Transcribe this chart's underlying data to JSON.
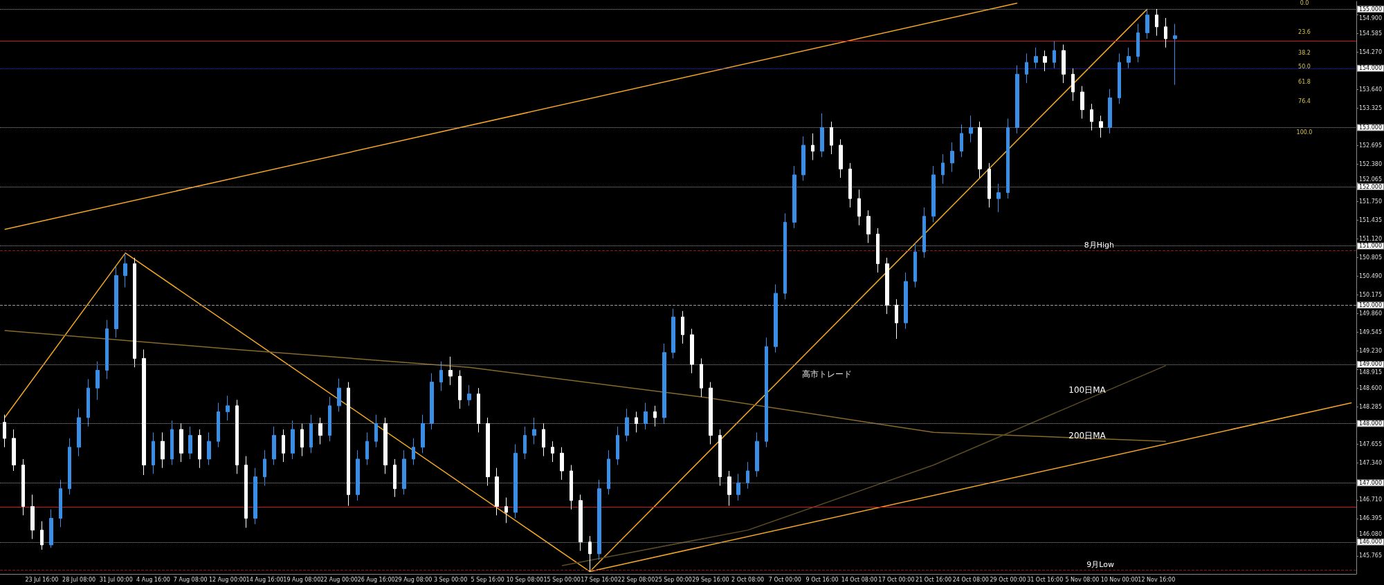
{
  "chart_data": {
    "type": "candlestick",
    "categories": [
      null,
      null,
      null,
      null,
      "23 Jul 16:00",
      null,
      null,
      null,
      "28 Jul 08:00",
      null,
      null,
      null,
      "31 Jul 00:00",
      null,
      null,
      null,
      "4 Aug 16:00",
      null,
      null,
      null,
      "7 Aug 08:00",
      null,
      null,
      null,
      "12 Aug 00:00",
      null,
      null,
      null,
      "14 Aug 16:00",
      null,
      null,
      null,
      "19 Aug 08:00",
      null,
      null,
      null,
      "22 Aug 00:00",
      null,
      null,
      null,
      "26 Aug 16:00",
      null,
      null,
      null,
      "29 Aug 08:00",
      null,
      null,
      null,
      "3 Sep 00:00",
      null,
      null,
      null,
      "5 Sep 16:00",
      null,
      null,
      null,
      "10 Sep 08:00",
      null,
      null,
      null,
      "15 Sep 00:00",
      null,
      null,
      null,
      "17 Sep 16:00",
      null,
      null,
      null,
      "22 Sep 08:00",
      null,
      null,
      null,
      "25 Sep 00:00",
      null,
      null,
      null,
      "29 Sep 16:00",
      null,
      null,
      null,
      "2 Oct 08:00",
      null,
      null,
      null,
      "7 Oct 00:00",
      null,
      null,
      null,
      "9 Oct 16:00",
      null,
      null,
      null,
      "14 Oct 08:00",
      null,
      null,
      null,
      "17 Oct 00:00",
      null,
      null,
      null,
      "21 Oct 16:00",
      null,
      null,
      null,
      "24 Oct 08:00",
      null,
      null,
      null,
      "29 Oct 00:00",
      null,
      null,
      null,
      "31 Oct 16:00",
      null,
      null,
      null,
      "5 Nov 08:00",
      null,
      null,
      null,
      "10 Nov 00:00",
      null,
      null,
      null,
      "12 Nov 16:00",
      null,
      null,
      null,
      null,
      null,
      null,
      null,
      null,
      null,
      null,
      null,
      null,
      null,
      null,
      null,
      null,
      null,
      null,
      null,
      null,
      null
    ],
    "colors": [
      "#ffffff",
      "#ffffff",
      "#ffffff",
      "#ffffff",
      "#ffffff",
      "#3a8ee6",
      "#3a8ee6",
      "#3a8ee6",
      "#3a8ee6",
      "#3a8ee6",
      "#3a8ee6",
      "#3a8ee6",
      "#3a8ee6",
      "#3a8ee6",
      "#ffffff",
      "#ffffff",
      "#3a8ee6",
      "#ffffff",
      "#3a8ee6",
      "#ffffff",
      "#3a8ee6",
      "#ffffff",
      "#3a8ee6",
      "#3a8ee6",
      "#3a8ee6",
      "#ffffff",
      "#ffffff",
      "#3a8ee6",
      "#3a8ee6",
      "#3a8ee6",
      "#ffffff",
      "#3a8ee6",
      "#ffffff",
      "#3a8ee6",
      "#ffffff",
      "#3a8ee6",
      "#3a8ee6",
      "#ffffff",
      "#3a8ee6",
      "#3a8ee6",
      "#3a8ee6",
      "#ffffff",
      "#ffffff",
      "#3a8ee6",
      "#3a8ee6",
      "#3a8ee6",
      "#3a8ee6",
      "#3a8ee6",
      "#ffffff",
      "#ffffff",
      "#3a8ee6",
      "#ffffff",
      "#ffffff",
      "#ffffff",
      "#ffffff",
      "#3a8ee6",
      "#3a8ee6",
      "#3a8ee6",
      "#ffffff",
      "#ffffff",
      "#ffffff",
      "#ffffff",
      "#ffffff",
      "#ffffff",
      "#3a8ee6",
      "#3a8ee6",
      "#3a8ee6",
      "#3a8ee6",
      "#ffffff",
      "#3a8ee6",
      "#ffffff",
      "#3a8ee6",
      "#3a8ee6",
      "#ffffff",
      "#ffffff",
      "#ffffff",
      "#ffffff",
      "#ffffff",
      "#ffffff",
      "#3a8ee6",
      "#3a8ee6",
      "#3a8ee6",
      "#3a8ee6",
      "#3a8ee6",
      "#3a8ee6",
      "#3a8ee6",
      "#3a8ee6",
      "#ffffff",
      "#3a8ee6",
      "#ffffff",
      "#ffffff",
      "#ffffff",
      "#ffffff",
      "#ffffff",
      "#ffffff",
      "#ffffff",
      "#ffffff",
      "#3a8ee6",
      "#3a8ee6",
      "#3a8ee6",
      "#3a8ee6",
      "#3a8ee6",
      "#3a8ee6",
      "#3a8ee6",
      "#3a8ee6",
      "#ffffff",
      "#ffffff",
      "#3a8ee6",
      "#3a8ee6",
      "#3a8ee6",
      "#3a8ee6",
      "#3a8ee6",
      "#ffffff",
      "#3a8ee6",
      "#ffffff",
      "#ffffff",
      "#ffffff",
      "#ffffff",
      "#ffffff",
      "#3a8ee6",
      "#3a8ee6",
      "#3a8ee6",
      "#3a8ee6",
      "#3a8ee6",
      "#ffffff",
      "#ffffff",
      "#3a8ee6",
      null,
      null,
      null,
      null,
      null,
      null,
      null,
      null,
      null,
      null,
      null,
      null,
      null,
      null,
      null,
      null,
      null,
      null,
      null
    ],
    "ohlc": [
      [
        148.02,
        148.15,
        147.6,
        147.75
      ],
      [
        147.75,
        147.9,
        147.2,
        147.3
      ],
      [
        147.3,
        147.4,
        146.45,
        146.6
      ],
      [
        146.6,
        146.8,
        146.05,
        146.2
      ],
      [
        146.2,
        146.35,
        145.87,
        145.95
      ],
      [
        145.95,
        146.55,
        145.9,
        146.4
      ],
      [
        146.4,
        147.05,
        146.25,
        146.9
      ],
      [
        146.9,
        147.75,
        146.8,
        147.6
      ],
      [
        147.6,
        148.25,
        147.45,
        148.1
      ],
      [
        148.1,
        148.75,
        147.95,
        148.6
      ],
      [
        148.6,
        149.05,
        148.4,
        148.9
      ],
      [
        148.9,
        149.75,
        148.75,
        149.6
      ],
      [
        149.6,
        150.65,
        149.45,
        150.5
      ],
      [
        150.5,
        150.88,
        150.3,
        150.7
      ],
      [
        150.7,
        150.8,
        148.95,
        149.1
      ],
      [
        149.1,
        149.25,
        147.13,
        147.3
      ],
      [
        147.3,
        147.85,
        147.15,
        147.7
      ],
      [
        147.7,
        147.85,
        147.25,
        147.4
      ],
      [
        147.4,
        148.05,
        147.3,
        147.9
      ],
      [
        147.9,
        148.0,
        147.35,
        147.5
      ],
      [
        147.5,
        147.95,
        147.4,
        147.8
      ],
      [
        147.8,
        147.9,
        147.25,
        147.4
      ],
      [
        147.4,
        147.85,
        147.3,
        147.7
      ],
      [
        147.7,
        148.35,
        147.6,
        148.2
      ],
      [
        148.2,
        148.47,
        148.05,
        148.3
      ],
      [
        148.3,
        148.4,
        147.15,
        147.3
      ],
      [
        147.3,
        147.45,
        146.24,
        146.4
      ],
      [
        146.4,
        147.25,
        146.3,
        147.1
      ],
      [
        147.1,
        147.55,
        146.95,
        147.4
      ],
      [
        147.4,
        147.95,
        147.3,
        147.8
      ],
      [
        147.8,
        147.9,
        147.35,
        147.5
      ],
      [
        147.5,
        148.05,
        147.4,
        147.9
      ],
      [
        147.9,
        148.0,
        147.45,
        147.6
      ],
      [
        147.6,
        148.15,
        147.5,
        148.0
      ],
      [
        148.0,
        148.1,
        147.65,
        147.8
      ],
      [
        147.8,
        148.45,
        147.7,
        148.3
      ],
      [
        148.3,
        148.76,
        148.2,
        148.6
      ],
      [
        148.6,
        148.7,
        146.61,
        146.8
      ],
      [
        146.8,
        147.55,
        146.7,
        147.4
      ],
      [
        147.4,
        147.85,
        147.3,
        147.7
      ],
      [
        147.7,
        148.15,
        147.6,
        148.0
      ],
      [
        148.0,
        148.1,
        147.15,
        147.3
      ],
      [
        147.3,
        147.4,
        146.76,
        146.9
      ],
      [
        146.9,
        147.55,
        146.8,
        147.4
      ],
      [
        147.4,
        147.75,
        147.3,
        147.6
      ],
      [
        147.6,
        148.15,
        147.5,
        148.0
      ],
      [
        148.0,
        148.85,
        147.9,
        148.7
      ],
      [
        148.7,
        149.05,
        148.55,
        148.9
      ],
      [
        148.9,
        149.13,
        148.65,
        148.8
      ],
      [
        148.8,
        148.9,
        148.25,
        148.4
      ],
      [
        148.4,
        148.65,
        148.3,
        148.5
      ],
      [
        148.5,
        148.6,
        147.85,
        148.0
      ],
      [
        148.0,
        148.1,
        146.95,
        147.1
      ],
      [
        147.1,
        147.25,
        146.45,
        146.6
      ],
      [
        146.6,
        146.75,
        146.32,
        146.5
      ],
      [
        146.5,
        147.65,
        146.4,
        147.5
      ],
      [
        147.5,
        147.95,
        147.4,
        147.8
      ],
      [
        147.8,
        148.1,
        147.65,
        147.9
      ],
      [
        147.9,
        148.0,
        147.45,
        147.6
      ],
      [
        147.6,
        147.7,
        147.35,
        147.5
      ],
      [
        147.5,
        147.6,
        147.05,
        147.2
      ],
      [
        147.2,
        147.3,
        146.55,
        146.7
      ],
      [
        146.7,
        146.8,
        145.85,
        146.0
      ],
      [
        146.0,
        146.1,
        145.5,
        145.8
      ],
      [
        145.8,
        147.05,
        145.7,
        146.9
      ],
      [
        146.9,
        147.55,
        146.8,
        147.4
      ],
      [
        147.4,
        147.95,
        147.3,
        147.8
      ],
      [
        147.8,
        148.25,
        147.7,
        148.1
      ],
      [
        148.1,
        148.2,
        147.85,
        148.0
      ],
      [
        148.0,
        148.35,
        147.9,
        148.2
      ],
      [
        148.2,
        148.3,
        147.95,
        148.1
      ],
      [
        148.1,
        149.35,
        148.0,
        149.2
      ],
      [
        149.2,
        149.94,
        149.1,
        149.8
      ],
      [
        149.8,
        149.9,
        149.35,
        149.5
      ],
      [
        149.5,
        149.6,
        148.85,
        149.0
      ],
      [
        149.0,
        149.1,
        148.45,
        148.6
      ],
      [
        148.6,
        148.7,
        147.65,
        147.8
      ],
      [
        147.8,
        147.9,
        146.95,
        147.1
      ],
      [
        147.1,
        147.2,
        146.61,
        146.8
      ],
      [
        146.8,
        147.15,
        146.7,
        147.0
      ],
      [
        147.0,
        147.35,
        146.9,
        147.2
      ],
      [
        147.2,
        147.85,
        147.1,
        147.7
      ],
      [
        147.7,
        149.45,
        147.6,
        149.3
      ],
      [
        149.3,
        150.35,
        149.2,
        150.2
      ],
      [
        150.2,
        151.55,
        150.1,
        151.4
      ],
      [
        151.4,
        152.35,
        151.3,
        152.2
      ],
      [
        152.2,
        152.85,
        152.1,
        152.7
      ],
      [
        152.7,
        152.9,
        152.45,
        152.6
      ],
      [
        152.6,
        153.24,
        152.5,
        153.0
      ],
      [
        153.0,
        153.1,
        152.55,
        152.7
      ],
      [
        152.7,
        152.8,
        152.15,
        152.3
      ],
      [
        152.3,
        152.4,
        151.65,
        151.8
      ],
      [
        151.8,
        151.95,
        151.35,
        151.5
      ],
      [
        151.5,
        151.6,
        151.05,
        151.2
      ],
      [
        151.2,
        151.3,
        150.55,
        150.7
      ],
      [
        150.7,
        150.8,
        149.85,
        150.0
      ],
      [
        150.0,
        150.1,
        149.43,
        149.7
      ],
      [
        149.7,
        150.55,
        149.6,
        150.4
      ],
      [
        150.4,
        151.05,
        150.3,
        150.9
      ],
      [
        150.9,
        151.65,
        150.8,
        151.5
      ],
      [
        151.5,
        152.35,
        151.4,
        152.2
      ],
      [
        152.2,
        152.55,
        152.05,
        152.4
      ],
      [
        152.4,
        152.75,
        152.25,
        152.6
      ],
      [
        152.6,
        153.05,
        152.5,
        152.9
      ],
      [
        152.9,
        153.2,
        152.75,
        153.0
      ],
      [
        153.0,
        153.1,
        152.15,
        152.3
      ],
      [
        152.3,
        152.4,
        151.65,
        151.8
      ],
      [
        151.8,
        152.05,
        151.57,
        151.9
      ],
      [
        151.9,
        153.15,
        151.8,
        153.0
      ],
      [
        153.0,
        154.05,
        152.9,
        153.9
      ],
      [
        153.9,
        154.25,
        153.75,
        154.1
      ],
      [
        154.1,
        154.35,
        154.0,
        154.2
      ],
      [
        154.2,
        154.3,
        153.95,
        154.1
      ],
      [
        154.1,
        154.46,
        154.0,
        154.3
      ],
      [
        154.3,
        154.4,
        153.75,
        153.9
      ],
      [
        153.9,
        154.0,
        153.45,
        153.6
      ],
      [
        153.6,
        153.7,
        153.15,
        153.3
      ],
      [
        153.3,
        153.4,
        152.95,
        153.1
      ],
      [
        153.1,
        153.2,
        152.83,
        153.0
      ],
      [
        153.0,
        153.65,
        152.9,
        153.5
      ],
      [
        153.5,
        154.25,
        153.4,
        154.1
      ],
      [
        154.1,
        154.35,
        154.0,
        154.2
      ],
      [
        154.2,
        154.75,
        154.1,
        154.6
      ],
      [
        154.6,
        155.0,
        154.5,
        154.9
      ],
      [
        154.9,
        155.0,
        154.55,
        154.7
      ],
      [
        154.7,
        154.85,
        154.35,
        154.5
      ],
      [
        154.5,
        154.75,
        153.72,
        154.55
      ],
      null,
      null,
      null,
      null,
      null,
      null,
      null,
      null,
      null,
      null,
      null,
      null,
      null,
      null,
      null,
      null,
      null,
      null,
      null
    ],
    "series": [
      {
        "type": "line",
        "color": "#f5a623",
        "values": [
          148.1,
          null,
          null,
          null,
          null,
          null,
          null,
          null,
          null,
          null,
          null,
          null,
          null,
          150.88,
          null,
          null,
          null,
          null,
          null,
          null,
          null,
          null,
          null,
          null,
          null,
          null,
          null,
          null,
          null,
          null,
          null,
          null,
          null,
          null,
          null,
          null,
          null,
          null,
          null,
          null,
          null,
          null,
          null,
          null,
          null,
          null,
          null,
          null,
          null,
          null,
          null,
          null,
          null,
          null,
          null,
          null,
          null,
          null,
          null,
          null,
          null,
          null,
          null,
          145.5,
          null,
          null,
          null,
          null,
          null,
          null,
          null,
          null,
          null,
          null,
          null,
          null,
          null,
          null,
          null,
          null,
          null,
          null,
          null,
          null,
          null,
          null,
          null,
          null,
          null,
          null,
          null,
          null,
          null,
          null,
          null,
          null,
          null,
          null,
          null,
          null,
          null,
          null,
          null,
          null,
          null,
          null,
          null,
          null,
          null,
          null,
          null,
          null,
          null,
          null,
          null,
          null,
          null,
          null,
          null,
          null,
          null,
          null,
          null,
          155.0,
          null,
          null,
          null,
          null,
          null,
          null,
          null,
          null,
          null,
          null,
          null,
          null,
          null,
          null,
          null,
          null,
          null,
          null,
          null,
          null,
          null,
          null
        ]
      },
      {
        "type": "line",
        "color": "#f5a623",
        "values": [
          151.28,
          null,
          null,
          null,
          null,
          null,
          null,
          null,
          null,
          null,
          null,
          null,
          null,
          null,
          null,
          null,
          null,
          null,
          null,
          null,
          null,
          null,
          null,
          null,
          null,
          null,
          null,
          null,
          null,
          null,
          null,
          null,
          null,
          null,
          null,
          null,
          null,
          null,
          null,
          null,
          null,
          null,
          null,
          null,
          null,
          null,
          null,
          null,
          null,
          null,
          null,
          null,
          null,
          null,
          null,
          null,
          null,
          null,
          null,
          null,
          null,
          null,
          null,
          null,
          null,
          null,
          null,
          null,
          null,
          null,
          null,
          null,
          null,
          null,
          null,
          null,
          null,
          null,
          null,
          null,
          null,
          null,
          null,
          null,
          null,
          null,
          null,
          null,
          null,
          null,
          null,
          null,
          null,
          null,
          null,
          null,
          null,
          null,
          null,
          null,
          null,
          null,
          null,
          null,
          null,
          null,
          null,
          null,
          null,
          155.1,
          null,
          null,
          null,
          null,
          null,
          null,
          null,
          null,
          null,
          null,
          null,
          null,
          null,
          null,
          null,
          null,
          null,
          null,
          null,
          null,
          null,
          null,
          null,
          null,
          null,
          null,
          null,
          null,
          null,
          null,
          null,
          null,
          null,
          null,
          null,
          null
        ]
      },
      {
        "type": "line",
        "color": "#f5a623",
        "values": [
          null,
          null,
          null,
          null,
          null,
          null,
          null,
          null,
          null,
          null,
          null,
          null,
          null,
          null,
          null,
          null,
          null,
          null,
          null,
          null,
          null,
          null,
          null,
          null,
          null,
          null,
          null,
          null,
          null,
          null,
          null,
          null,
          null,
          null,
          null,
          null,
          null,
          null,
          null,
          null,
          null,
          null,
          null,
          null,
          null,
          null,
          null,
          null,
          null,
          null,
          null,
          null,
          null,
          null,
          null,
          null,
          null,
          null,
          null,
          null,
          null,
          null,
          null,
          145.5,
          null,
          null,
          null,
          null,
          null,
          null,
          null,
          null,
          null,
          null,
          null,
          null,
          null,
          null,
          null,
          null,
          null,
          null,
          null,
          null,
          null,
          null,
          null,
          null,
          null,
          null,
          null,
          null,
          null,
          null,
          null,
          null,
          null,
          null,
          null,
          null,
          null,
          null,
          null,
          null,
          null,
          null,
          null,
          null,
          null,
          null,
          null,
          null,
          null,
          null,
          null,
          null,
          null,
          null,
          null,
          null,
          null,
          null,
          null,
          null,
          null,
          null,
          null,
          null,
          null,
          null,
          null,
          null,
          null,
          null,
          null,
          null,
          null,
          null,
          null,
          null,
          null,
          null,
          null,
          null,
          null,
          148.35
        ]
      },
      {
        "type": "line",
        "color": "#8a6a2a",
        "values": [
          149.57,
          null,
          null,
          null,
          null,
          null,
          null,
          null,
          null,
          null,
          null,
          null,
          null,
          null,
          null,
          null,
          null,
          null,
          null,
          null,
          null,
          null,
          null,
          null,
          null,
          149.25,
          null,
          null,
          null,
          null,
          null,
          null,
          null,
          null,
          null,
          null,
          null,
          null,
          null,
          null,
          null,
          null,
          null,
          null,
          null,
          null,
          null,
          null,
          null,
          null,
          148.95,
          null,
          null,
          null,
          null,
          null,
          null,
          null,
          null,
          null,
          null,
          null,
          null,
          null,
          null,
          null,
          null,
          null,
          null,
          null,
          null,
          null,
          null,
          null,
          null,
          148.45,
          null,
          null,
          null,
          null,
          null,
          null,
          null,
          null,
          null,
          null,
          null,
          null,
          null,
          null,
          null,
          null,
          null,
          null,
          null,
          null,
          null,
          null,
          null,
          null,
          147.85,
          null,
          null,
          null,
          null,
          null,
          null,
          null,
          null,
          null,
          null,
          null,
          null,
          null,
          null,
          null,
          null,
          null,
          null,
          null,
          null,
          null,
          null,
          null,
          null,
          147.7,
          null,
          null,
          null,
          null,
          null,
          null,
          null,
          null,
          null,
          null,
          null,
          null,
          null,
          null,
          null,
          null,
          null,
          null,
          null,
          null
        ]
      },
      {
        "type": "line",
        "color": "#5c4c24",
        "values": [
          null,
          null,
          null,
          null,
          null,
          null,
          null,
          null,
          null,
          null,
          null,
          null,
          null,
          null,
          null,
          null,
          null,
          null,
          null,
          null,
          null,
          null,
          null,
          null,
          null,
          null,
          null,
          null,
          null,
          null,
          null,
          null,
          null,
          null,
          null,
          null,
          null,
          null,
          null,
          null,
          null,
          null,
          null,
          null,
          null,
          null,
          null,
          null,
          null,
          null,
          null,
          null,
          null,
          null,
          null,
          null,
          null,
          null,
          null,
          null,
          145.6,
          null,
          null,
          null,
          null,
          null,
          null,
          null,
          null,
          null,
          null,
          null,
          null,
          null,
          null,
          null,
          null,
          null,
          null,
          null,
          146.2,
          null,
          null,
          null,
          null,
          null,
          null,
          null,
          null,
          null,
          null,
          null,
          null,
          null,
          null,
          null,
          null,
          null,
          null,
          null,
          147.3,
          null,
          null,
          null,
          null,
          null,
          null,
          null,
          null,
          null,
          null,
          null,
          null,
          null,
          null,
          null,
          null,
          null,
          null,
          null,
          null,
          null,
          null,
          null,
          null,
          148.98,
          null,
          null,
          null,
          null,
          null,
          null,
          null,
          null,
          null,
          null,
          null,
          null,
          null,
          null,
          null,
          null,
          null,
          null,
          null,
          null
        ]
      }
    ],
    "ylim": [
      145.46,
      155.13
    ],
    "yticks": [
      145.765,
      {
        "value": 146.08,
        "label": "146.080"
      },
      146.395,
      {
        "value": 146.71,
        "label": "146.710"
      },
      {
        "value": 147.34,
        "label": "147.340"
      },
      147.655,
      148.285,
      {
        "value": 148.6,
        "label": "148.600"
      },
      148.915,
      {
        "value": 149.23,
        "label": "149.230"
      },
      149.545,
      {
        "value": 149.86,
        "label": "149.860"
      },
      150.175,
      {
        "value": 150.49,
        "label": "150.490"
      },
      150.805,
      {
        "value": 151.12,
        "label": "151.120"
      },
      151.435,
      {
        "value": 151.75,
        "label": "151.750"
      },
      152.065,
      {
        "value": 152.38,
        "label": "152.380"
      },
      152.695,
      153.325,
      {
        "value": 153.64,
        "label": "153.640"
      },
      {
        "value": 154.27,
        "label": "154.270"
      },
      154.585,
      {
        "value": 154.9,
        "label": "154.900"
      }
    ],
    "ref_lines": [
      {
        "axis": "y",
        "value": 155,
        "label": "155.000",
        "line_style": "dotted"
      },
      {
        "axis": "y",
        "value": 154,
        "label": "154.000",
        "line_style": "dotted",
        "color": "#2a2aff"
      },
      {
        "axis": "y",
        "value": 153,
        "label": "153.000",
        "line_style": "dotted"
      },
      {
        "axis": "y",
        "value": 152,
        "label": "152.000",
        "line_style": "dotted"
      },
      {
        "axis": "y",
        "value": 151,
        "label": "151.000",
        "line_style": "dotted"
      },
      {
        "axis": "y",
        "value": 150,
        "label": "150.000",
        "line_style": "dashed"
      },
      {
        "axis": "y",
        "value": 149,
        "label": "149.000",
        "line_style": "dotted"
      },
      {
        "axis": "y",
        "value": 148,
        "label": "148.000",
        "line_style": "dotted"
      },
      {
        "axis": "y",
        "value": 147,
        "label": "147.000",
        "line_style": "dotted"
      },
      {
        "axis": "y",
        "value": 146,
        "label": "146.000",
        "line_style": "dotted"
      },
      {
        "axis": "y",
        "value": 154.46,
        "label": null,
        "line_style": "solid",
        "color": "#d01818"
      },
      {
        "axis": "y",
        "value": 146.585,
        "label": null,
        "line_style": "solid",
        "color": "#d01818"
      },
      {
        "axis": "y",
        "value": 150.92,
        "label": "8月High",
        "line_style": "dashed",
        "color": "#8b1a1a"
      },
      {
        "axis": "y",
        "value": 145.53,
        "label": "9月Low",
        "line_style": "dashed",
        "color": "#8b1a1a"
      }
    ],
    "annotations": [
      "100日MA",
      "200日MA",
      "高市トレード",
      "0.0",
      "23.6",
      "38.2",
      "50.0",
      "61.8",
      "76.4",
      "100.0"
    ]
  }
}
